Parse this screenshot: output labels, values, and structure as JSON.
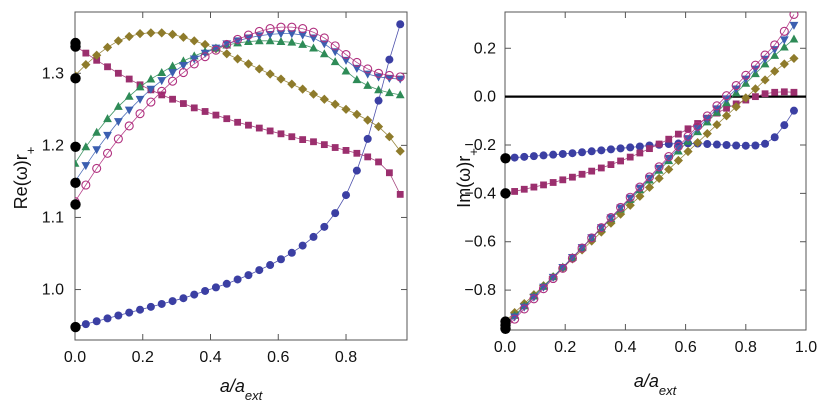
{
  "chart_data": [
    {
      "type": "scatter",
      "title": "",
      "xlabel": "a/a_ext",
      "ylabel": "Re(ω)r_+",
      "xlim": [
        0.0,
        0.98
      ],
      "ylim": [
        0.93,
        1.385
      ],
      "xticks": [
        "0.0",
        "0.2",
        "0.4",
        "0.6",
        "0.8"
      ],
      "xtick_values": [
        0.0,
        0.2,
        0.4,
        0.6,
        0.8
      ],
      "yticks": [
        "1.0",
        "1.1",
        "1.2",
        "1.3"
      ],
      "ytick_values": [
        1.0,
        1.1,
        1.2,
        1.3
      ],
      "zero_line": false,
      "limit_points": [
        0.948,
        1.118,
        1.148,
        1.198,
        1.293,
        1.337,
        1.342
      ],
      "series": [
        {
          "name": "blue-circles",
          "marker": "circle-filled",
          "color": "#3b3fa3",
          "x0": 0.0,
          "dx": 0.032,
          "values": [
            0.948,
            0.952,
            0.956,
            0.96,
            0.964,
            0.968,
            0.972,
            0.976,
            0.98,
            0.984,
            0.988,
            0.993,
            0.998,
            1.003,
            1.008,
            1.014,
            1.02,
            1.027,
            1.034,
            1.042,
            1.051,
            1.061,
            1.073,
            1.087,
            1.106,
            1.131,
            1.165,
            1.209,
            1.262,
            1.319,
            1.368
          ]
        },
        {
          "name": "purple-squares",
          "marker": "square",
          "color": "#9b2f6e",
          "x0": 0.0,
          "dx": 0.032,
          "values": [
            1.338,
            1.328,
            1.318,
            1.309,
            1.3,
            1.292,
            1.284,
            1.277,
            1.27,
            1.264,
            1.258,
            1.252,
            1.247,
            1.242,
            1.237,
            1.232,
            1.228,
            1.224,
            1.22,
            1.216,
            1.212,
            1.208,
            1.205,
            1.201,
            1.197,
            1.193,
            1.189,
            1.184,
            1.177,
            1.162,
            1.132
          ]
        },
        {
          "name": "gold-diamonds",
          "marker": "diamond",
          "color": "#8e7b2b",
          "x0": 0.0,
          "dx": 0.032,
          "values": [
            1.297,
            1.312,
            1.325,
            1.336,
            1.345,
            1.351,
            1.355,
            1.356,
            1.356,
            1.354,
            1.35,
            1.345,
            1.34,
            1.334,
            1.327,
            1.32,
            1.313,
            1.306,
            1.299,
            1.292,
            1.285,
            1.278,
            1.271,
            1.264,
            1.257,
            1.25,
            1.243,
            1.235,
            1.226,
            1.212,
            1.192
          ]
        },
        {
          "name": "green-triangles",
          "marker": "triangle-up",
          "color": "#2e8b57",
          "x0": 0.0,
          "dx": 0.032,
          "values": [
            1.175,
            1.198,
            1.218,
            1.237,
            1.254,
            1.268,
            1.281,
            1.292,
            1.301,
            1.31,
            1.317,
            1.324,
            1.33,
            1.335,
            1.339,
            1.342,
            1.344,
            1.345,
            1.345,
            1.344,
            1.343,
            1.34,
            1.335,
            1.327,
            1.316,
            1.303,
            1.291,
            1.283,
            1.277,
            1.273,
            1.27
          ]
        },
        {
          "name": "blue-down-triangles",
          "marker": "triangle-down",
          "color": "#3b5fb0",
          "x0": 0.0,
          "dx": 0.032,
          "values": [
            1.15,
            1.172,
            1.194,
            1.214,
            1.233,
            1.249,
            1.264,
            1.278,
            1.29,
            1.301,
            1.311,
            1.32,
            1.328,
            1.335,
            1.341,
            1.345,
            1.349,
            1.352,
            1.354,
            1.355,
            1.355,
            1.353,
            1.349,
            1.341,
            1.33,
            1.318,
            1.307,
            1.299,
            1.295,
            1.293,
            1.292
          ]
        },
        {
          "name": "open-circles",
          "marker": "circle-open",
          "color": "#b0307f",
          "x0": 0.0,
          "dx": 0.032,
          "values": [
            1.122,
            1.145,
            1.168,
            1.189,
            1.209,
            1.227,
            1.244,
            1.26,
            1.275,
            1.289,
            1.301,
            1.313,
            1.323,
            1.332,
            1.34,
            1.347,
            1.353,
            1.358,
            1.362,
            1.364,
            1.364,
            1.362,
            1.357,
            1.349,
            1.338,
            1.326,
            1.315,
            1.306,
            1.3,
            1.297,
            1.295
          ]
        }
      ]
    },
    {
      "type": "scatter",
      "title": "",
      "xlabel": "a/a_ext",
      "ylabel": "Im(ω)r_+",
      "xlim": [
        0.0,
        1.0
      ],
      "ylim": [
        -0.965,
        0.35
      ],
      "xticks": [
        "0.0",
        "0.2",
        "0.4",
        "0.6",
        "0.8",
        "1.0"
      ],
      "xtick_values": [
        0.0,
        0.2,
        0.4,
        0.6,
        0.8,
        1.0
      ],
      "yticks": [
        "0.2",
        "0.0",
        "−0.2",
        "−0.4",
        "−0.6",
        "−0.8"
      ],
      "ytick_values": [
        0.2,
        0.0,
        -0.2,
        -0.4,
        -0.6,
        -0.8
      ],
      "zero_line": true,
      "limit_points": [
        -0.255,
        -0.4,
        -0.93,
        -0.945,
        -0.96
      ],
      "series": [
        {
          "name": "blue-circles",
          "marker": "circle-filled",
          "color": "#3b3fa3",
          "x0": 0.0,
          "dx": 0.032,
          "values": [
            -0.256,
            -0.252,
            -0.249,
            -0.246,
            -0.243,
            -0.24,
            -0.237,
            -0.234,
            -0.23,
            -0.226,
            -0.222,
            -0.218,
            -0.214,
            -0.21,
            -0.206,
            -0.202,
            -0.199,
            -0.196,
            -0.194,
            -0.193,
            -0.194,
            -0.196,
            -0.198,
            -0.2,
            -0.202,
            -0.203,
            -0.202,
            -0.195,
            -0.168,
            -0.118,
            -0.058
          ]
        },
        {
          "name": "purple-squares",
          "marker": "square",
          "color": "#9b2f6e",
          "x0": 0.0,
          "dx": 0.032,
          "values": [
            -0.4,
            -0.392,
            -0.383,
            -0.374,
            -0.365,
            -0.355,
            -0.344,
            -0.333,
            -0.321,
            -0.308,
            -0.295,
            -0.281,
            -0.266,
            -0.25,
            -0.233,
            -0.215,
            -0.196,
            -0.176,
            -0.155,
            -0.133,
            -0.111,
            -0.089,
            -0.068,
            -0.048,
            -0.03,
            -0.014,
            0.0,
            0.012,
            0.018,
            0.02,
            0.018
          ]
        },
        {
          "name": "gold-diamonds",
          "marker": "diamond",
          "color": "#8e7b2b",
          "x0": 0.0,
          "dx": 0.032,
          "values": [
            -0.93,
            -0.893,
            -0.856,
            -0.819,
            -0.782,
            -0.745,
            -0.708,
            -0.671,
            -0.634,
            -0.597,
            -0.56,
            -0.523,
            -0.486,
            -0.449,
            -0.412,
            -0.375,
            -0.338,
            -0.301,
            -0.264,
            -0.227,
            -0.19,
            -0.153,
            -0.116,
            -0.079,
            -0.042,
            -0.005,
            0.032,
            0.069,
            0.105,
            0.135,
            0.158
          ]
        },
        {
          "name": "green-triangles",
          "marker": "triangle-up",
          "color": "#2e8b57",
          "x0": 0.0,
          "dx": 0.032,
          "values": [
            -0.945,
            -0.905,
            -0.865,
            -0.825,
            -0.785,
            -0.745,
            -0.705,
            -0.665,
            -0.625,
            -0.585,
            -0.545,
            -0.505,
            -0.465,
            -0.425,
            -0.385,
            -0.345,
            -0.305,
            -0.265,
            -0.225,
            -0.185,
            -0.145,
            -0.105,
            -0.065,
            -0.025,
            0.015,
            0.055,
            0.095,
            0.135,
            0.17,
            0.205,
            0.238
          ]
        },
        {
          "name": "blue-down-triangles",
          "marker": "triangle-down",
          "color": "#3b5fb0",
          "x0": 0.0,
          "dx": 0.032,
          "values": [
            -0.952,
            -0.911,
            -0.87,
            -0.829,
            -0.788,
            -0.747,
            -0.706,
            -0.665,
            -0.624,
            -0.583,
            -0.542,
            -0.501,
            -0.46,
            -0.419,
            -0.378,
            -0.337,
            -0.296,
            -0.255,
            -0.214,
            -0.173,
            -0.132,
            -0.091,
            -0.05,
            -0.009,
            0.032,
            0.073,
            0.114,
            0.155,
            0.195,
            0.235,
            0.295
          ]
        },
        {
          "name": "open-circles",
          "marker": "circle-open",
          "color": "#b0307f",
          "x0": 0.0,
          "dx": 0.032,
          "values": [
            -0.962,
            -0.92,
            -0.878,
            -0.836,
            -0.794,
            -0.752,
            -0.71,
            -0.668,
            -0.626,
            -0.584,
            -0.542,
            -0.5,
            -0.458,
            -0.416,
            -0.374,
            -0.332,
            -0.29,
            -0.248,
            -0.206,
            -0.164,
            -0.122,
            -0.08,
            -0.038,
            0.004,
            0.046,
            0.088,
            0.13,
            0.172,
            0.214,
            0.27,
            0.34
          ]
        }
      ]
    }
  ]
}
